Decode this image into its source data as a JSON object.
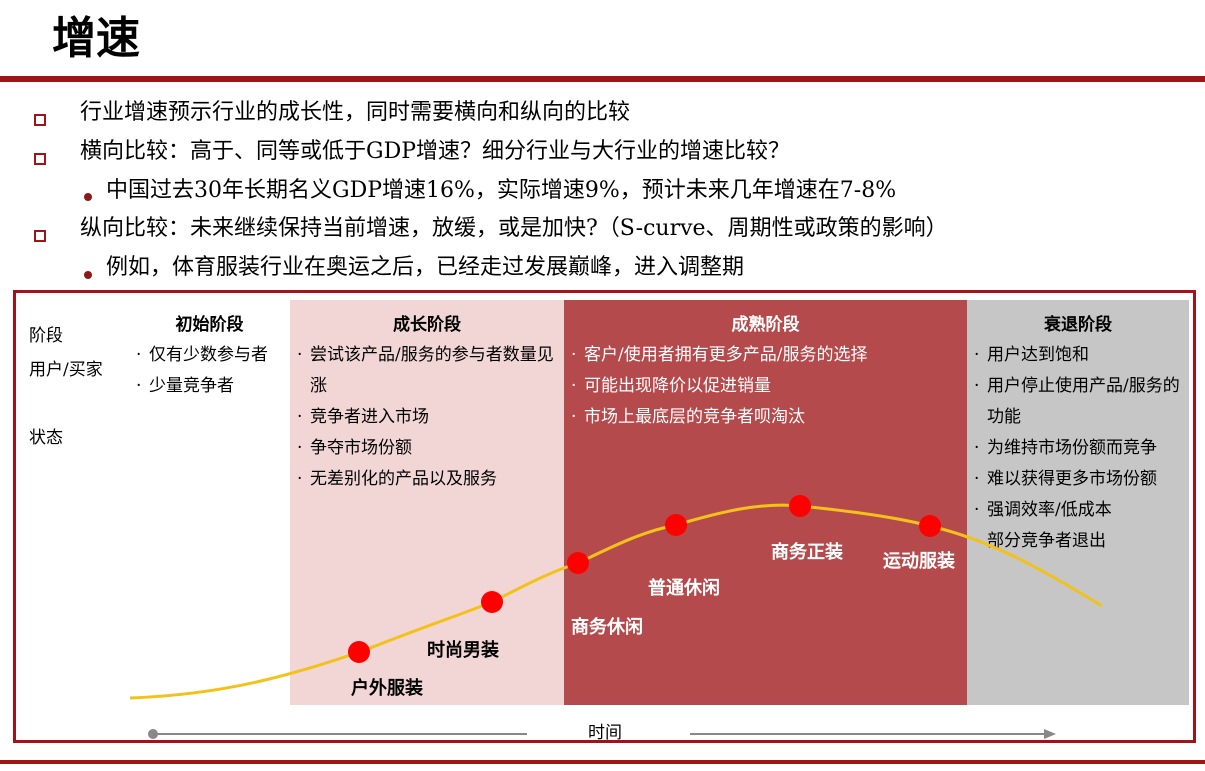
{
  "title": "增速",
  "bullets": [
    {
      "level": 1,
      "text": "行业增速预示行业的成长性，同时需要横向和纵向的比较"
    },
    {
      "level": 1,
      "text": "横向比较：高于、同等或低于GDP增速？细分行业与大行业的增速比较？"
    },
    {
      "level": 2,
      "text": "中国过去30年长期名义GDP增速16%，实际增速9%，预计未来几年增速在7-8%"
    },
    {
      "level": 1,
      "text": "纵向比较：未来继续保持当前增速，放缓，或是加快?（S-curve、周期性或政策的影响）"
    },
    {
      "level": 2,
      "text": "例如，体育服装行业在奥运之后，已经走过发展巅峰，进入调整期"
    }
  ],
  "row_labels": {
    "stage": "阶段",
    "user": "用户/买家",
    "status": "状态"
  },
  "stages": [
    {
      "name": "初始阶段",
      "color": "#ffffff",
      "text_color": "#000000",
      "items": [
        "仅有少数参与者",
        "少量竞争者"
      ]
    },
    {
      "name": "成长阶段",
      "color": "#f2d6d6",
      "text_color": "#000000",
      "items": [
        "尝试该产品/服务的参与者数量见涨",
        "竞争者进入市场",
        "争夺市场份额",
        "无差别化的产品以及服务"
      ]
    },
    {
      "name": "成熟阶段",
      "color": "#b54a4c",
      "text_color": "#ffffff",
      "items": [
        "客户/使用者拥有更多产品/服务的选择",
        "可能出现降价以促进销量",
        "市场上最底层的竞争者呗淘汰"
      ]
    },
    {
      "name": "衰退阶段",
      "color": "#c6c6c6",
      "text_color": "#000000",
      "items": [
        "用户达到饱和",
        "用户停止使用产品/服务的功能",
        "为维持市场份额而竞争",
        "难以获得更多市场份额",
        "强调效率/低成本",
        "部分竞争者退出"
      ]
    }
  ],
  "markers": [
    {
      "label": "户外服装"
    },
    {
      "label": "时尚男装"
    },
    {
      "label": "商务休闲"
    },
    {
      "label": "普通休闲"
    },
    {
      "label": "商务正装"
    },
    {
      "label": "运动服装"
    }
  ],
  "axis_label": "时间",
  "colors": {
    "accent": "#a01417",
    "curve": "#f2c21b",
    "marker": "#ff0000"
  }
}
